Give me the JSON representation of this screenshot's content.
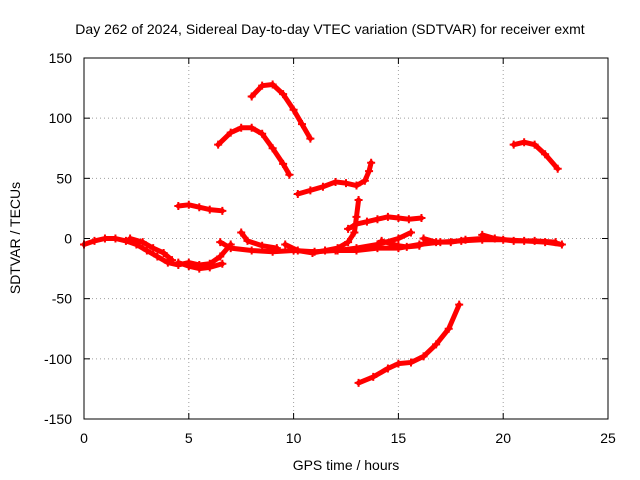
{
  "chart_data": {
    "type": "scatter",
    "title": "Day 262 of 2024, Sidereal Day-to-day VTEC variation (SDTVAR) for receiver exmt",
    "xlabel": "GPS time / hours",
    "ylabel": "SDTVAR / TECUs",
    "xlim": [
      0,
      25
    ],
    "ylim": [
      -150,
      150
    ],
    "xticks": [
      "0",
      "5",
      "10",
      "15",
      "20",
      "25"
    ],
    "yticks": [
      "150",
      "100",
      "50",
      "0",
      "-50",
      "-100",
      "-150"
    ],
    "grid": true,
    "color": "#ff0000",
    "series": [
      {
        "name": "s1",
        "points": [
          [
            0,
            -5
          ],
          [
            0.5,
            -2
          ],
          [
            1,
            0
          ],
          [
            1.5,
            0
          ],
          [
            2,
            -2
          ],
          [
            2.5,
            -5
          ],
          [
            3,
            -10
          ],
          [
            3.5,
            -15
          ],
          [
            4,
            -20
          ],
          [
            4.5,
            -22
          ],
          [
            5,
            -20
          ],
          [
            5.5,
            -22
          ],
          [
            6,
            -21
          ],
          [
            6.5,
            -15
          ],
          [
            7,
            -5
          ]
        ]
      },
      {
        "name": "s2",
        "points": [
          [
            2.2,
            0
          ],
          [
            2.8,
            -3
          ],
          [
            3.3,
            -8
          ],
          [
            3.8,
            -12
          ],
          [
            4.2,
            -18
          ]
        ]
      },
      {
        "name": "s3",
        "points": [
          [
            4.5,
            -20
          ],
          [
            5,
            -23
          ],
          [
            5.5,
            -25
          ],
          [
            6,
            -24
          ],
          [
            6.6,
            -21
          ]
        ]
      },
      {
        "name": "s4",
        "points": [
          [
            4.5,
            27
          ],
          [
            5,
            28
          ],
          [
            5.5,
            26
          ],
          [
            6,
            24
          ],
          [
            6.6,
            23
          ]
        ]
      },
      {
        "name": "s5",
        "points": [
          [
            6.5,
            -3
          ],
          [
            7,
            -8
          ],
          [
            8,
            -10
          ],
          [
            9,
            -11
          ],
          [
            10,
            -10
          ],
          [
            11,
            -11
          ],
          [
            12,
            -10
          ],
          [
            13,
            -10
          ],
          [
            14,
            -8
          ],
          [
            15,
            -8
          ],
          [
            16,
            -5
          ],
          [
            17,
            -3
          ],
          [
            18,
            -2
          ],
          [
            19,
            -1
          ],
          [
            20,
            -1
          ],
          [
            21,
            -2
          ],
          [
            22,
            -3
          ],
          [
            22.8,
            -5
          ]
        ]
      },
      {
        "name": "s6",
        "points": [
          [
            7.5,
            5
          ],
          [
            7.8,
            -2
          ],
          [
            8.5,
            -6
          ],
          [
            9.2,
            -8
          ]
        ]
      },
      {
        "name": "s7",
        "points": [
          [
            6.4,
            78
          ],
          [
            7,
            88
          ],
          [
            7.5,
            92
          ],
          [
            8,
            92
          ],
          [
            8.5,
            87
          ],
          [
            9,
            75
          ],
          [
            9.5,
            62
          ],
          [
            9.8,
            53
          ]
        ]
      },
      {
        "name": "s8",
        "points": [
          [
            8,
            118
          ],
          [
            8.5,
            127
          ],
          [
            9,
            128
          ],
          [
            9.5,
            120
          ],
          [
            10,
            107
          ],
          [
            10.4,
            95
          ],
          [
            10.8,
            83
          ]
        ]
      },
      {
        "name": "s9",
        "points": [
          [
            10.2,
            37
          ],
          [
            10.8,
            40
          ],
          [
            11.4,
            43
          ],
          [
            12,
            47
          ],
          [
            12.5,
            46
          ],
          [
            13,
            44
          ],
          [
            13.4,
            48
          ],
          [
            13.6,
            56
          ],
          [
            13.7,
            63
          ]
        ]
      },
      {
        "name": "s10",
        "points": [
          [
            9.6,
            -5
          ],
          [
            10.2,
            -10
          ],
          [
            10.9,
            -12
          ],
          [
            11.5,
            -10
          ],
          [
            12.1,
            -8
          ],
          [
            12.6,
            -3
          ],
          [
            12.9,
            5
          ],
          [
            13,
            18
          ],
          [
            13.1,
            32
          ]
        ]
      },
      {
        "name": "s11",
        "points": [
          [
            12.6,
            8
          ],
          [
            13,
            12
          ],
          [
            13.5,
            14
          ],
          [
            14,
            16
          ],
          [
            14.5,
            18
          ],
          [
            15,
            17
          ],
          [
            15.5,
            16
          ],
          [
            16.1,
            17
          ]
        ]
      },
      {
        "name": "s12",
        "points": [
          [
            12.1,
            -10
          ],
          [
            13,
            -8
          ],
          [
            14,
            -5
          ],
          [
            15,
            0
          ],
          [
            15.6,
            5
          ]
        ]
      },
      {
        "name": "s13",
        "points": [
          [
            14.2,
            -2
          ],
          [
            14.6,
            -4
          ],
          [
            15,
            -6
          ],
          [
            15.4,
            -7
          ],
          [
            16,
            -6
          ]
        ]
      },
      {
        "name": "s14",
        "points": [
          [
            16.2,
            0
          ],
          [
            16.8,
            -3
          ],
          [
            17.5,
            -3
          ],
          [
            18.2,
            -1
          ],
          [
            19,
            0
          ]
        ]
      },
      {
        "name": "s15",
        "points": [
          [
            19,
            3
          ],
          [
            19.6,
            0
          ],
          [
            20.5,
            -2
          ],
          [
            21.5,
            -2
          ],
          [
            22.5,
            -3
          ]
        ]
      },
      {
        "name": "s16",
        "points": [
          [
            13.1,
            -120
          ],
          [
            13.8,
            -115
          ],
          [
            14.5,
            -108
          ],
          [
            15,
            -104
          ],
          [
            15.6,
            -103
          ],
          [
            16.2,
            -98
          ],
          [
            16.8,
            -88
          ],
          [
            17.4,
            -75
          ],
          [
            17.9,
            -55
          ]
        ]
      },
      {
        "name": "s17",
        "points": [
          [
            20.5,
            78
          ],
          [
            21,
            80
          ],
          [
            21.5,
            78
          ],
          [
            22,
            70
          ],
          [
            22.6,
            58
          ]
        ]
      }
    ]
  }
}
